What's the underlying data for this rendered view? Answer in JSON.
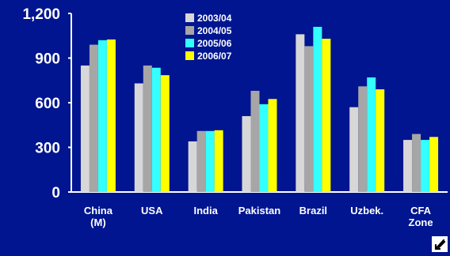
{
  "chart_data": {
    "type": "bar",
    "title": "",
    "xlabel": "",
    "ylabel": "",
    "ylim": [
      0,
      1200
    ],
    "yticks": [
      "0",
      "300",
      "600",
      "900",
      "1,200"
    ],
    "categories": [
      [
        "China",
        "(M)"
      ],
      [
        "USA"
      ],
      [
        "India"
      ],
      [
        "Pakistan"
      ],
      [
        "Brazil"
      ],
      [
        "Uzbek."
      ],
      [
        "CFA",
        "Zone"
      ]
    ],
    "series": [
      {
        "name": "2003/04",
        "color": "#d7d7d7",
        "values": [
          850,
          730,
          340,
          510,
          1060,
          570,
          350
        ]
      },
      {
        "name": "2004/05",
        "color": "#a6a6a6",
        "values": [
          990,
          850,
          410,
          680,
          980,
          710,
          390
        ]
      },
      {
        "name": "2005/06",
        "color": "#33ffff",
        "values": [
          1020,
          835,
          410,
          590,
          1110,
          770,
          350
        ]
      },
      {
        "name": "2006/07",
        "color": "#ffff00",
        "values": [
          1025,
          785,
          415,
          625,
          1030,
          690,
          370
        ]
      }
    ],
    "legend_position": "top-left inside plot",
    "grid": false
  },
  "corner_icon": "grab-hand-icon"
}
